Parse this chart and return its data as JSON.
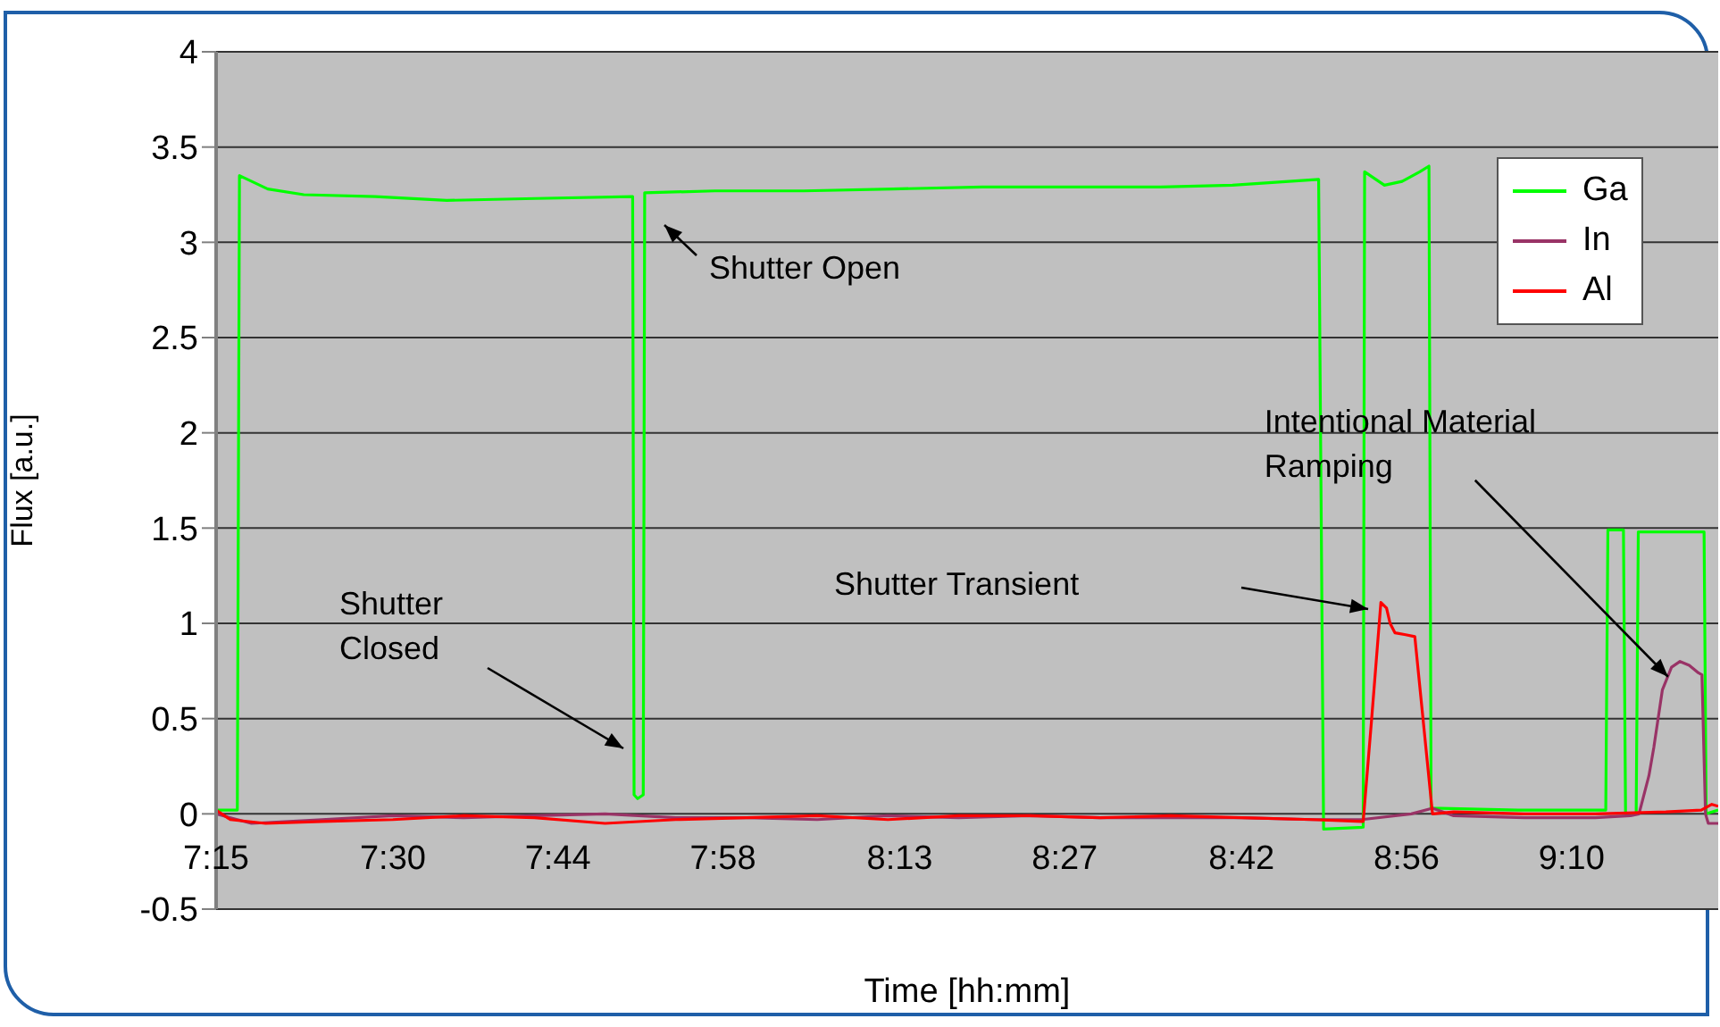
{
  "chart_data": {
    "type": "line",
    "xlabel": "Time [hh:mm]",
    "ylabel": "Flux [a.u.]",
    "xlim": [
      7.25,
      9.374
    ],
    "xticks": [
      {
        "value": 7.25,
        "label": "7:15"
      },
      {
        "value": 7.5,
        "label": "7:30"
      },
      {
        "value": 7.7333,
        "label": "7:44"
      },
      {
        "value": 7.9667,
        "label": "7:58"
      },
      {
        "value": 8.2167,
        "label": "8:13"
      },
      {
        "value": 8.45,
        "label": "8:27"
      },
      {
        "value": 8.7,
        "label": "8:42"
      },
      {
        "value": 8.9333,
        "label": "8:56"
      },
      {
        "value": 9.1667,
        "label": "9:10"
      }
    ],
    "ylim": [
      -0.5,
      4
    ],
    "yticks": [
      -0.5,
      0,
      0.5,
      1,
      1.5,
      2,
      2.5,
      3,
      3.5,
      4
    ],
    "grid": "y",
    "legend": "top right",
    "marker": "none",
    "line_style": "solid",
    "series": [
      {
        "name": "Ga",
        "color": "#00ff00",
        "x": [
          7.25,
          7.28,
          7.283,
          7.323,
          7.374,
          7.475,
          7.576,
          7.702,
          7.839,
          7.841,
          7.846,
          7.854,
          7.856,
          7.955,
          8.081,
          8.207,
          8.334,
          8.46,
          8.586,
          8.687,
          8.809,
          8.816,
          8.872,
          8.874,
          8.902,
          8.927,
          8.952,
          8.965,
          8.968,
          9.091,
          9.215,
          9.218,
          9.24,
          9.243,
          9.258,
          9.261,
          9.354,
          9.357,
          9.374
        ],
        "values": [
          0.02,
          0.02,
          3.35,
          3.28,
          3.25,
          3.24,
          3.22,
          3.23,
          3.24,
          0.1,
          0.08,
          0.1,
          3.26,
          3.27,
          3.27,
          3.28,
          3.29,
          3.29,
          3.29,
          3.3,
          3.33,
          -0.08,
          -0.07,
          3.37,
          3.3,
          3.32,
          3.37,
          3.4,
          0.03,
          0.02,
          0.02,
          1.49,
          1.49,
          0,
          0,
          1.48,
          1.48,
          0,
          0.02
        ]
      },
      {
        "name": "In",
        "color": "#993366",
        "x": [
          7.25,
          7.3,
          7.4,
          7.5,
          7.6,
          7.7,
          7.8,
          7.9,
          8.0,
          8.1,
          8.2,
          8.3,
          8.4,
          8.5,
          8.6,
          8.7,
          8.8,
          8.87,
          8.94,
          8.97,
          9.0,
          9.1,
          9.2,
          9.25,
          9.262,
          9.276,
          9.283,
          9.295,
          9.308,
          9.32,
          9.333,
          9.346,
          9.351,
          9.356,
          9.36,
          9.374
        ],
        "values": [
          0,
          -0.05,
          -0.03,
          -0.01,
          -0.02,
          -0.01,
          0,
          -0.02,
          -0.02,
          -0.03,
          -0.01,
          -0.02,
          -0.01,
          -0.02,
          -0.02,
          -0.02,
          -0.03,
          -0.03,
          0,
          0.03,
          -0.01,
          -0.02,
          -0.02,
          -0.01,
          0,
          0.2,
          0.35,
          0.65,
          0.77,
          0.8,
          0.78,
          0.74,
          0.73,
          0,
          -0.05,
          -0.05
        ]
      },
      {
        "name": "Al",
        "color": "#ff0000",
        "x": [
          7.25,
          7.27,
          7.32,
          7.4,
          7.5,
          7.6,
          7.7,
          7.8,
          7.9,
          8.0,
          8.1,
          8.2,
          8.3,
          8.4,
          8.5,
          8.6,
          8.7,
          8.8,
          8.87,
          8.872,
          8.884,
          8.897,
          8.905,
          8.91,
          8.917,
          8.932,
          8.945,
          8.97,
          9.0,
          9.1,
          9.2,
          9.3,
          9.35,
          9.365,
          9.374
        ],
        "values": [
          0.02,
          -0.03,
          -0.05,
          -0.04,
          -0.03,
          -0.01,
          -0.02,
          -0.05,
          -0.03,
          -0.02,
          -0.01,
          -0.03,
          -0.01,
          -0.01,
          -0.02,
          -0.01,
          -0.02,
          -0.03,
          -0.04,
          -0.04,
          0.5,
          1.11,
          1.08,
          1,
          0.95,
          0.94,
          0.93,
          0,
          0.01,
          0,
          0,
          0.01,
          0.02,
          0.05,
          0.04
        ]
      }
    ],
    "annotations": [
      "Shutter Open",
      "Shutter\nClosed",
      "Shutter Transient",
      {
        "text": "Intentional Material\nRamping",
        "x": 9.303,
        "y": 0.72
      }
    ]
  }
}
